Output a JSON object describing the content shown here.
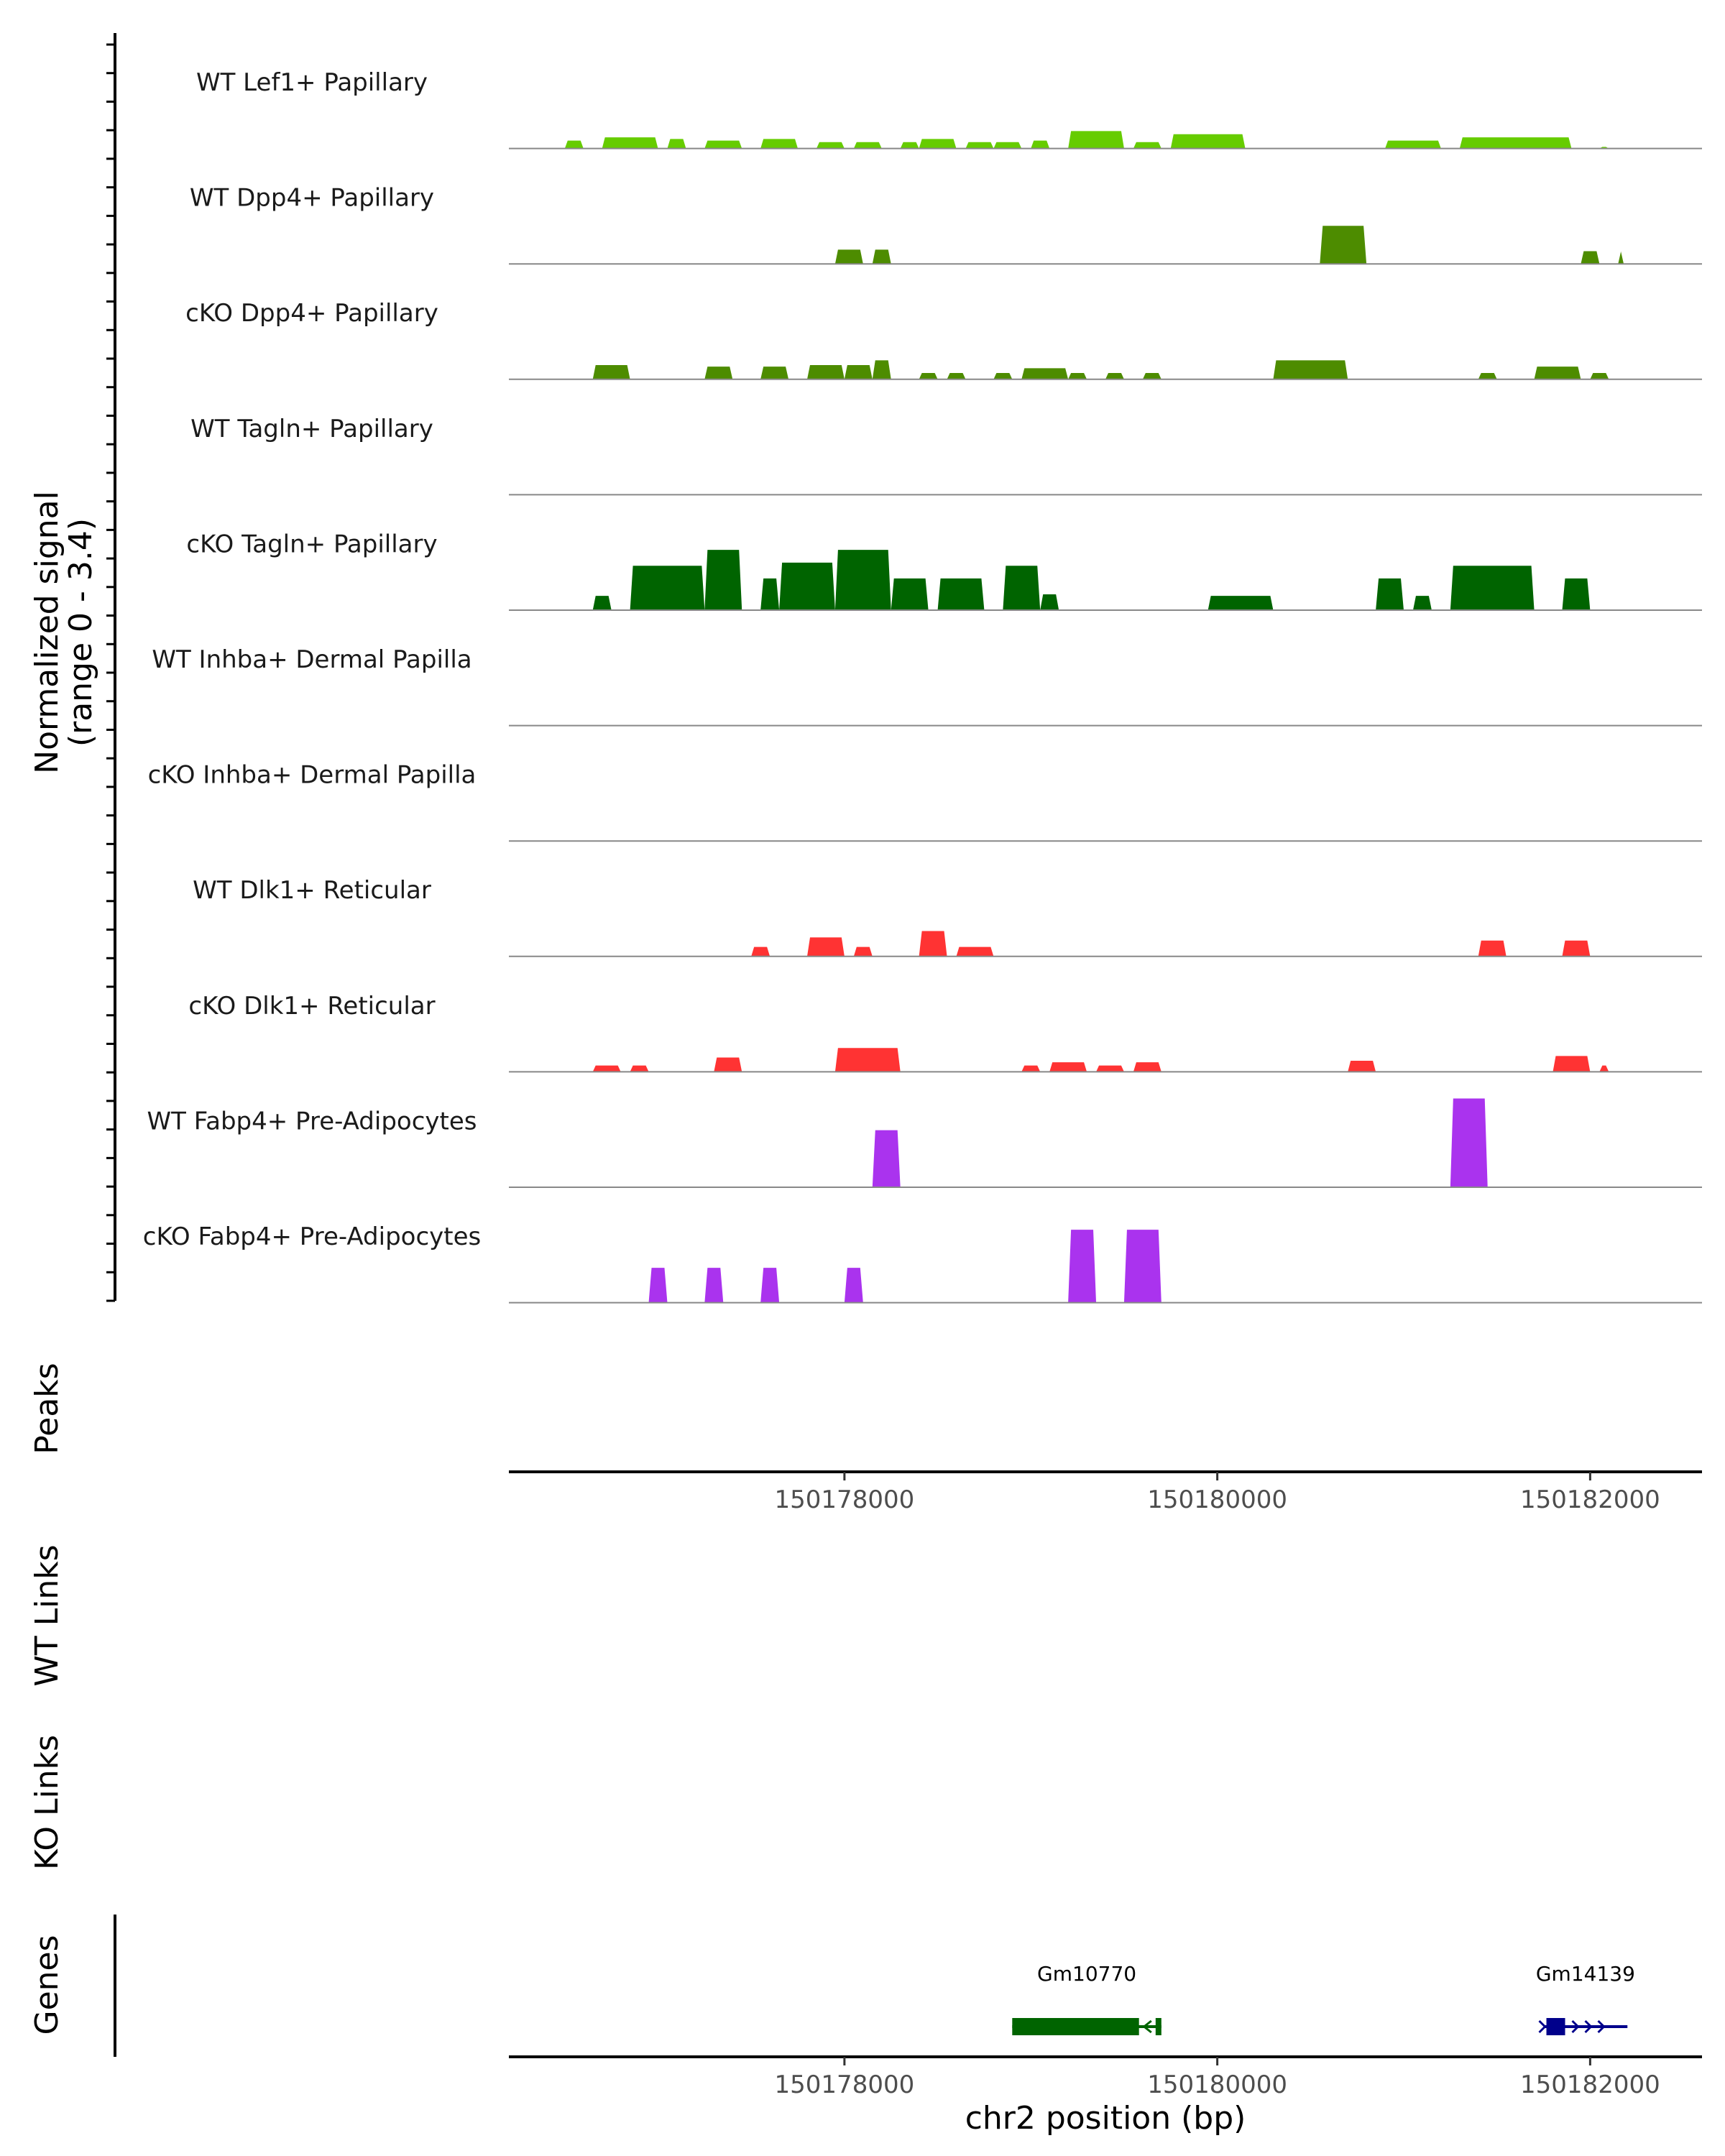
{
  "chart_data": {
    "type": "area",
    "y_axis_title_line1": "Normalized signal",
    "y_axis_title_line2": "(range 0 - 3.4)",
    "y_range": [
      0,
      3.4
    ],
    "x_range": [
      150176200,
      150182600
    ],
    "tracks": [
      {
        "label": "WT Lef1+ Papillary",
        "color": "#66CC00",
        "segments": [
          [
            150176500,
            150176600,
            0.25
          ],
          [
            150176700,
            150177000,
            0.35
          ],
          [
            150177050,
            150177150,
            0.3
          ],
          [
            150177250,
            150177450,
            0.25
          ],
          [
            150177550,
            150177750,
            0.3
          ],
          [
            150177850,
            150178000,
            0.2
          ],
          [
            150178050,
            150178200,
            0.2
          ],
          [
            150178300,
            150178400,
            0.2
          ],
          [
            150178400,
            150178600,
            0.3
          ],
          [
            150178650,
            150178800,
            0.2
          ],
          [
            150178800,
            150178950,
            0.2
          ],
          [
            150179000,
            150179100,
            0.25
          ],
          [
            150179200,
            150179500,
            0.55
          ],
          [
            150179550,
            150179700,
            0.2
          ],
          [
            150179750,
            150180150,
            0.45
          ],
          [
            150180900,
            150181200,
            0.25
          ],
          [
            150181300,
            150181900,
            0.35
          ],
          [
            150182050,
            150182100,
            0.05
          ]
        ]
      },
      {
        "label": "WT Dpp4+ Papillary",
        "color": "#4D8C00",
        "segments": [
          [
            150177950,
            150178100,
            0.45
          ],
          [
            150178150,
            150178250,
            0.45
          ],
          [
            150180550,
            150180800,
            1.2
          ],
          [
            150181950,
            150182050,
            0.4
          ],
          [
            150182150,
            150182180,
            0.4
          ]
        ]
      },
      {
        "label": "cKO Dpp4+ Papillary",
        "color": "#4D8C00",
        "segments": [
          [
            150176650,
            150176850,
            0.45
          ],
          [
            150177250,
            150177400,
            0.4
          ],
          [
            150177550,
            150177700,
            0.4
          ],
          [
            150177800,
            150178000,
            0.45
          ],
          [
            150178000,
            150178150,
            0.45
          ],
          [
            150178150,
            150178250,
            0.6
          ],
          [
            150178400,
            150178500,
            0.2
          ],
          [
            150178550,
            150178650,
            0.2
          ],
          [
            150178800,
            150178900,
            0.2
          ],
          [
            150178950,
            150179200,
            0.35
          ],
          [
            150179200,
            150179300,
            0.2
          ],
          [
            150179400,
            150179500,
            0.2
          ],
          [
            150179600,
            150179700,
            0.2
          ],
          [
            150180300,
            150180700,
            0.6
          ],
          [
            150181400,
            150181500,
            0.2
          ],
          [
            150181700,
            150181950,
            0.4
          ],
          [
            150182000,
            150182100,
            0.2
          ]
        ]
      },
      {
        "label": "WT Tagln+ Papillary",
        "color": "#006400",
        "segments": []
      },
      {
        "label": "cKO Tagln+ Papillary",
        "color": "#006400",
        "segments": [
          [
            150176650,
            150176750,
            0.45
          ],
          [
            150176850,
            150177250,
            1.4
          ],
          [
            150177250,
            150177450,
            1.9
          ],
          [
            150177550,
            150177650,
            1.0
          ],
          [
            150177650,
            150177950,
            1.5
          ],
          [
            150177950,
            150178250,
            1.9
          ],
          [
            150178250,
            150178450,
            1.0
          ],
          [
            150178500,
            150178750,
            1.0
          ],
          [
            150178850,
            150179050,
            1.4
          ],
          [
            150179050,
            150179150,
            0.5
          ],
          [
            150179950,
            150180300,
            0.45
          ],
          [
            150180850,
            150181000,
            1.0
          ],
          [
            150181050,
            150181150,
            0.45
          ],
          [
            150181250,
            150181700,
            1.4
          ],
          [
            150181850,
            150182000,
            1.0
          ]
        ]
      },
      {
        "label": "WT Inhba+ Dermal Papilla",
        "color": "#006400",
        "segments": []
      },
      {
        "label": "cKO Inhba+ Dermal Papilla",
        "color": "#006400",
        "segments": []
      },
      {
        "label": "WT Dlk1+ Reticular",
        "color": "#FF3333",
        "segments": [
          [
            150177500,
            150177600,
            0.3
          ],
          [
            150177800,
            150178000,
            0.6
          ],
          [
            150178050,
            150178150,
            0.3
          ],
          [
            150178400,
            150178550,
            0.8
          ],
          [
            150178600,
            150178800,
            0.3
          ],
          [
            150181400,
            150181550,
            0.5
          ],
          [
            150181850,
            150182000,
            0.5
          ]
        ]
      },
      {
        "label": "cKO Dlk1+ Reticular",
        "color": "#FF3333",
        "segments": [
          [
            150176650,
            150176800,
            0.2
          ],
          [
            150176850,
            150176950,
            0.2
          ],
          [
            150177300,
            150177450,
            0.45
          ],
          [
            150177950,
            150178300,
            0.75
          ],
          [
            150178950,
            150179050,
            0.2
          ],
          [
            150179100,
            150179300,
            0.3
          ],
          [
            150179350,
            150179500,
            0.2
          ],
          [
            150179550,
            150179700,
            0.3
          ],
          [
            150180700,
            150180850,
            0.35
          ],
          [
            150181800,
            150182000,
            0.5
          ],
          [
            150182050,
            150182100,
            0.2
          ]
        ]
      },
      {
        "label": "WT Fabp4+ Pre-Adipocytes",
        "color": "#AA33EE",
        "segments": [
          [
            150178150,
            150178300,
            1.8
          ],
          [
            150181250,
            150181450,
            2.8
          ]
        ]
      },
      {
        "label": "cKO Fabp4+ Pre-Adipocytes",
        "color": "#AA33EE",
        "segments": [
          [
            150176950,
            150177050,
            1.1
          ],
          [
            150177250,
            150177350,
            1.1
          ],
          [
            150177550,
            150177650,
            1.1
          ],
          [
            150178000,
            150178100,
            1.1
          ],
          [
            150179200,
            150179350,
            2.3
          ],
          [
            150179500,
            150179700,
            2.3
          ]
        ]
      }
    ],
    "panels": {
      "peaks": "Peaks",
      "wt_links": "WT Links",
      "ko_links": "KO Links",
      "genes": "Genes"
    },
    "x_ticks": [
      150178000,
      150180000,
      150182000
    ],
    "x_tick_labels": [
      "150178000",
      "150180000",
      "150182000"
    ],
    "x_axis_title": "chr2 position (bp)",
    "genes": [
      {
        "name": "Gm10770",
        "start": 150178900,
        "end": 150179700,
        "strand": "-",
        "color": "#006400"
      },
      {
        "name": "Gm14139",
        "start": 150181750,
        "end": 150182200,
        "strand": "+",
        "color": "#00008B"
      }
    ]
  }
}
